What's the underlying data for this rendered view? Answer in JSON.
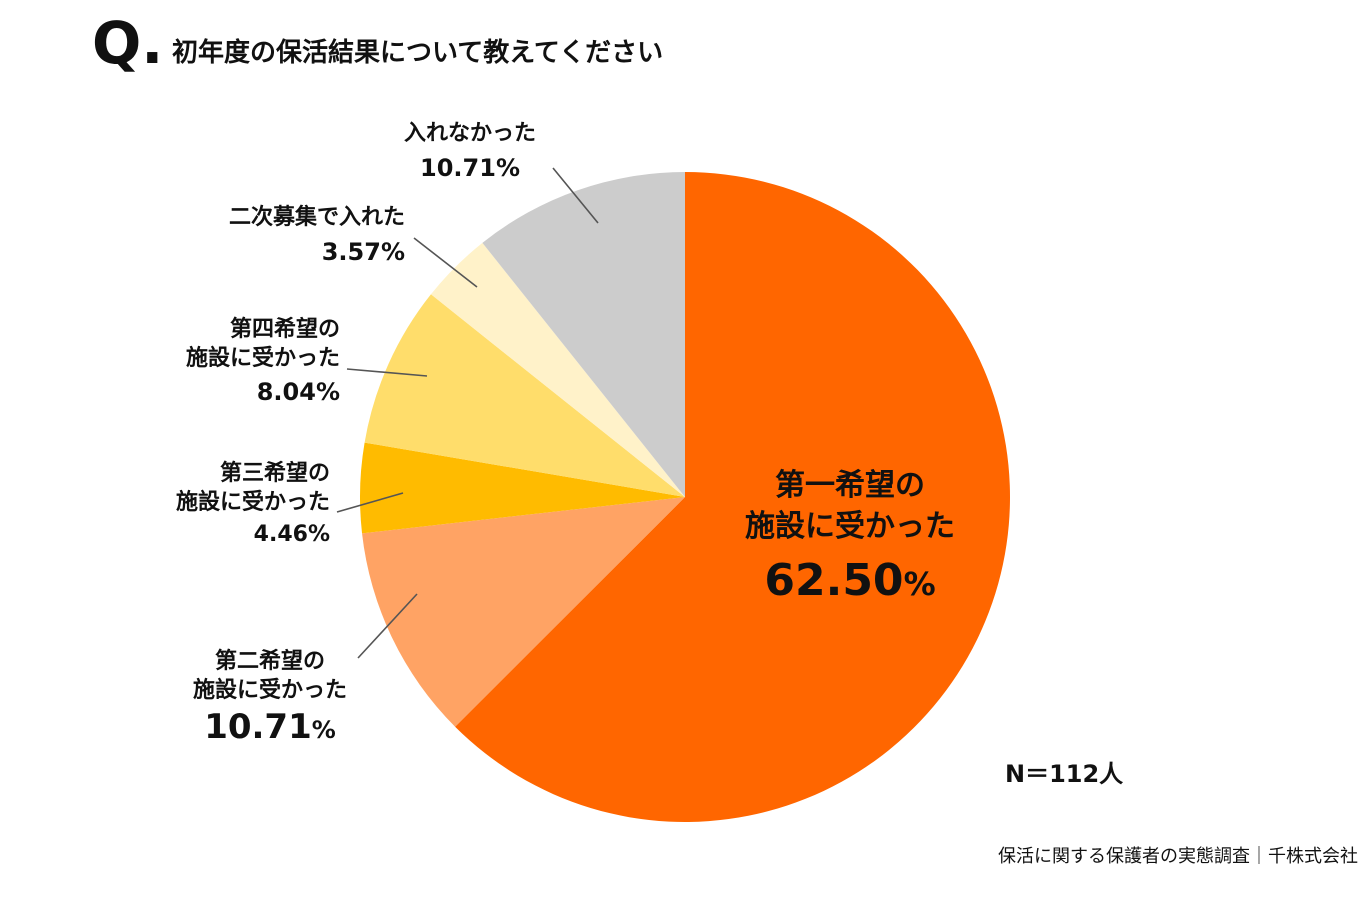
{
  "header": {
    "q_mark": "Q.",
    "title": "初年度の保活結果について教えてください"
  },
  "chart_data": {
    "type": "pie",
    "title": "初年度の保活結果について教えてください",
    "start": "top",
    "direction": "clockwise",
    "slices": [
      {
        "id": "first",
        "line1": "第一希望の",
        "line2": "施設に受かった",
        "value_text": "62.50",
        "value": 62.5,
        "color": "#FF6600"
      },
      {
        "id": "second",
        "line1": "第二希望の",
        "line2": "施設に受かった",
        "value_text": "10.71",
        "value": 10.71,
        "color": "#FFA364"
      },
      {
        "id": "third",
        "line1": "第三希望の",
        "line2": "施設に受かった",
        "value_text": "4.46",
        "value": 4.46,
        "color": "#FFBB00"
      },
      {
        "id": "fourth",
        "line1": "第四希望の",
        "line2": "施設に受かった",
        "value_text": "8.04",
        "value": 8.04,
        "color": "#FFDD6B"
      },
      {
        "id": "second_round",
        "line1": "二次募集で入れた",
        "line2": "",
        "value_text": "3.57",
        "value": 3.57,
        "color": "#FFF2C9"
      },
      {
        "id": "none",
        "line1": "入れなかった",
        "line2": "",
        "value_text": "10.71",
        "value": 10.71,
        "color": "#CCCCCC"
      }
    ],
    "percent_sign": "%",
    "n_label": "N＝112人"
  },
  "footer": {
    "source": "保活に関する保護者の実態調査｜千株式会社"
  }
}
